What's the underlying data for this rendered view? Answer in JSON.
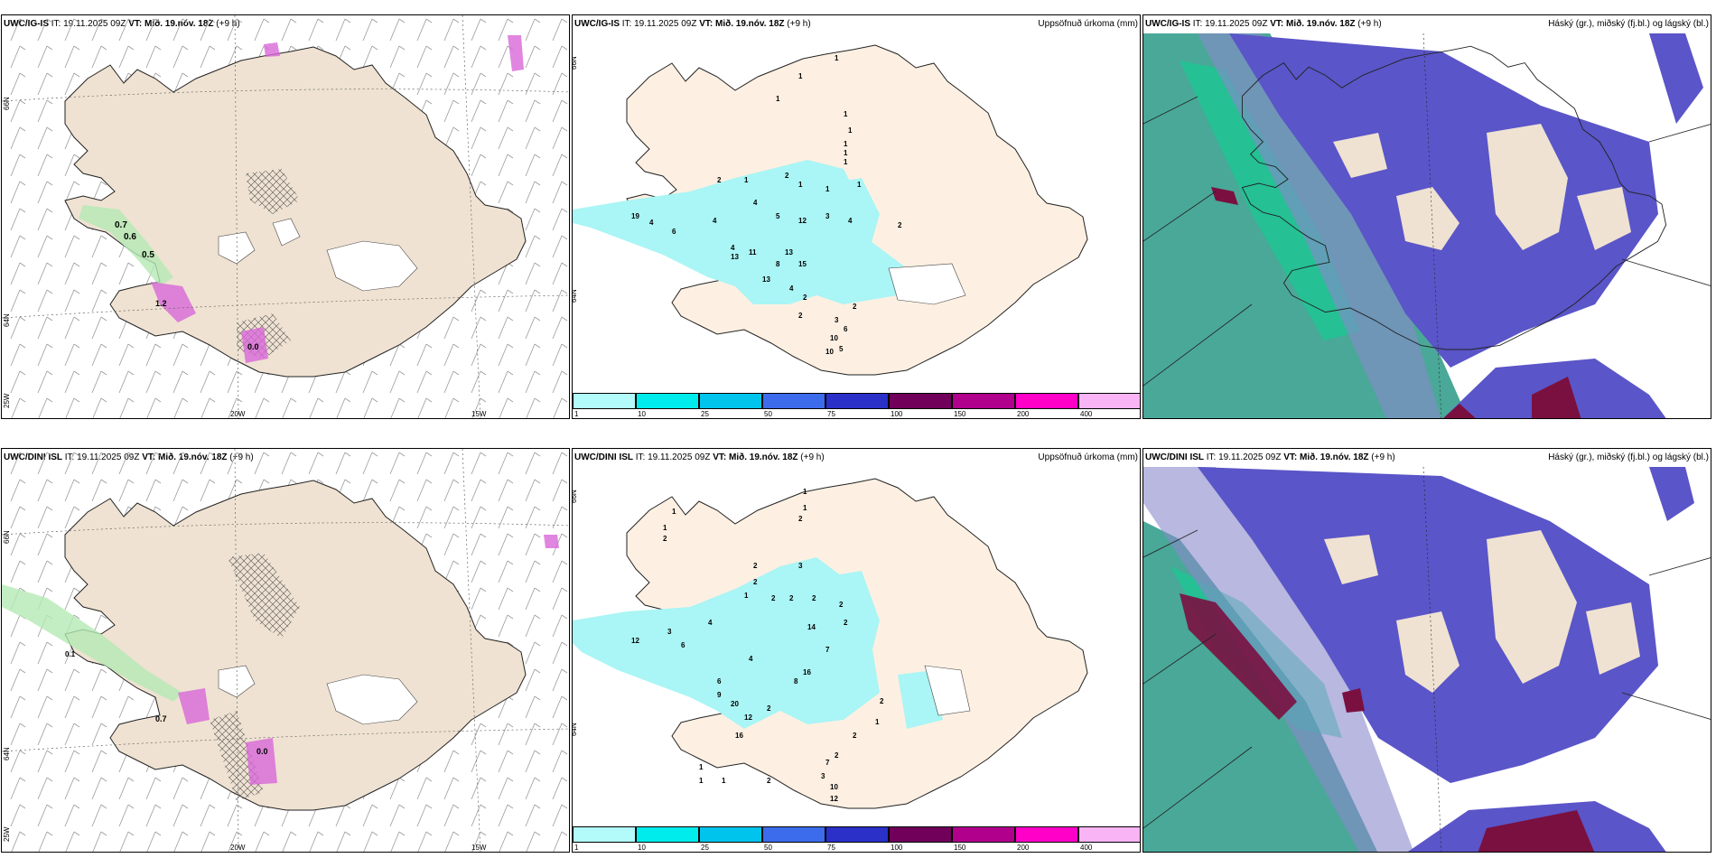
{
  "rows": [
    {
      "model": "UWC/IG-IS",
      "issue": "IT: 19.11.2025 09Z",
      "valid_prefix": "VT:",
      "valid": "Mið. 19.nóv. 18Z",
      "lead": "(+9 h)",
      "precip_title": "Uppsöfnuð úrkoma (mm)",
      "cloud_title": "Háský (gr.), miðský (fj.bl.) og lágský (bl.)",
      "precip_labels": [
        "1",
        "1",
        "1",
        "1",
        "1",
        "1",
        "1",
        "1",
        "2",
        "1",
        "2",
        "1",
        "1",
        "1",
        "4",
        "5",
        "19",
        "4",
        "6",
        "4",
        "12",
        "4",
        "13",
        "3",
        "4",
        "2",
        "11",
        "13",
        "8",
        "15",
        "13",
        "4",
        "2",
        "2",
        "6",
        "2",
        "3",
        "10",
        "10",
        "5"
      ],
      "wind_labels": [
        "0.7",
        "0.6",
        "0.5",
        "1.2",
        "0.0"
      ]
    },
    {
      "model": "UWC/DINI ISL",
      "issue": "IT: 19.11.2025 09Z",
      "valid_prefix": "VT:",
      "valid": "Mið. 19.nóv. 18Z",
      "lead": "(+9 h)",
      "precip_title": "Uppsöfnuð úrkoma (mm)",
      "cloud_title": "Háský (gr.), miðský (fj.bl.) og lágský (bl.)",
      "precip_labels": [
        "1",
        "1",
        "2",
        "1",
        "1",
        "2",
        "2",
        "3",
        "2",
        "1",
        "2",
        "2",
        "2",
        "2",
        "12",
        "3",
        "6",
        "4",
        "14",
        "7",
        "2",
        "4",
        "6",
        "9",
        "16",
        "8",
        "20",
        "12",
        "2",
        "16",
        "2",
        "2",
        "2",
        "1",
        "7",
        "3",
        "10",
        "12",
        "1",
        "1",
        "1",
        "2"
      ],
      "wind_labels": [
        "0.1",
        "0.7",
        "0.0"
      ]
    }
  ],
  "axes": {
    "lat_labels": [
      "66N",
      "64N"
    ],
    "lon_labels": [
      "25W",
      "20W",
      "15W"
    ]
  },
  "legend": {
    "ticks": [
      "1",
      "10",
      "25",
      "50",
      "75",
      "100",
      "150",
      "200",
      "400"
    ],
    "colors": [
      "#b3fafa",
      "#00ecec",
      "#00c4ec",
      "#3c6cec",
      "#2a30c8",
      "#70005a",
      "#b0008c",
      "#ff00c8",
      "#f8b4f4"
    ]
  },
  "colors": {
    "land": "#efe2d2",
    "precip_light": "#aaf5f5",
    "cloud_high": "#5a55c8",
    "cloud_low": "#4aa898"
  }
}
